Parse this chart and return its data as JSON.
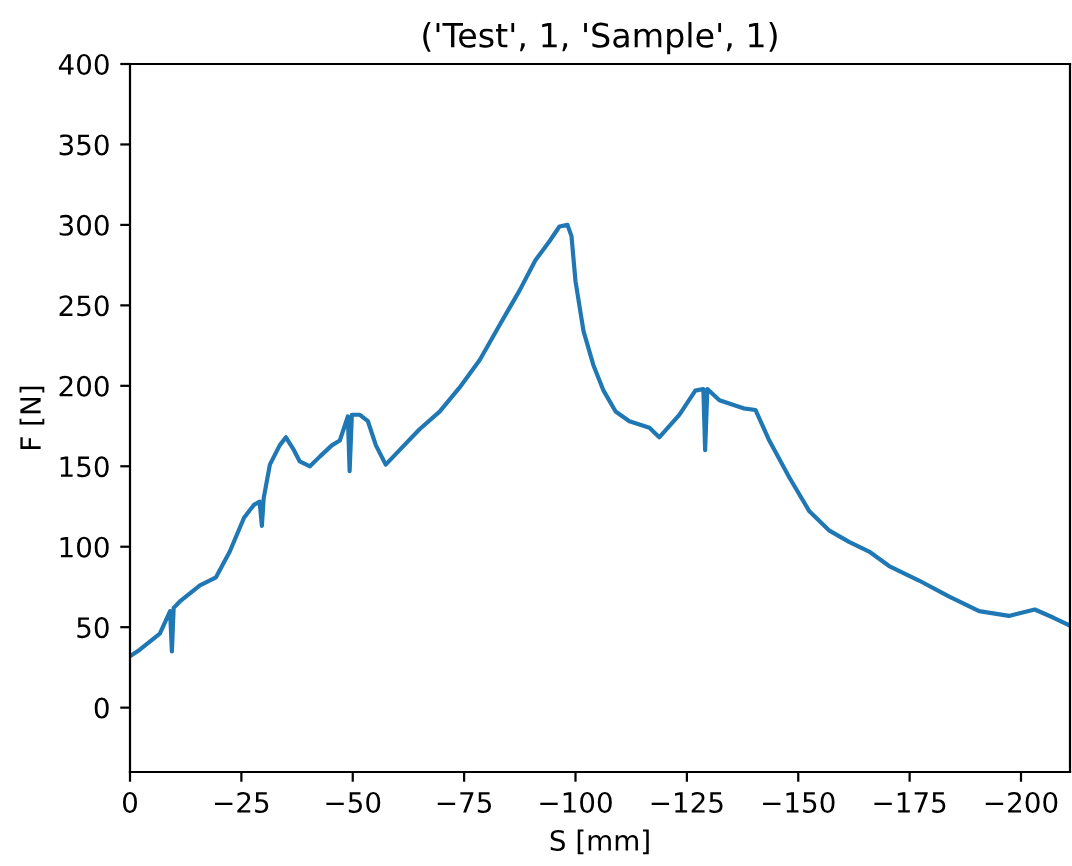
{
  "chart_data": {
    "type": "line",
    "title": "('Test', 1, 'Sample', 1)",
    "xlabel": "S [mm]",
    "ylabel": "F [N]",
    "xlim": [
      0,
      -211
    ],
    "ylim": [
      -40,
      400
    ],
    "xticks": [
      {
        "value": 0,
        "label": "0"
      },
      {
        "value": -25,
        "label": "−25"
      },
      {
        "value": -50,
        "label": "−50"
      },
      {
        "value": -75,
        "label": "−75"
      },
      {
        "value": -100,
        "label": "−100"
      },
      {
        "value": -125,
        "label": "−125"
      },
      {
        "value": -150,
        "label": "−150"
      },
      {
        "value": -175,
        "label": "−175"
      },
      {
        "value": -200,
        "label": "−200"
      }
    ],
    "yticks": [
      0,
      50,
      100,
      150,
      200,
      250,
      300,
      350,
      400
    ],
    "grid": false,
    "marker": "none",
    "line_style": "solid",
    "series": [
      {
        "color": "#1f77b4",
        "x": [
          0,
          -2.2,
          -6.7,
          -9.0,
          -9.4,
          -9.8,
          -11.2,
          -15.7,
          -19.3,
          -22.4,
          -25.6,
          -27.8,
          -29.1,
          -29.6,
          -30.0,
          -31.4,
          -33.6,
          -35.0,
          -36.8,
          -38.1,
          -40.4,
          -42.6,
          -45.3,
          -47.1,
          -48.9,
          -49.3,
          -49.8,
          -51.6,
          -53.4,
          -55.2,
          -57.4,
          -60.5,
          -65.0,
          -69.5,
          -74.0,
          -78.5,
          -83.0,
          -87.4,
          -91.0,
          -94.2,
          -96.4,
          -98.2,
          -99.1,
          -100.0,
          -101.8,
          -104.0,
          -106.3,
          -109.0,
          -112.1,
          -116.6,
          -118.8,
          -123.3,
          -126.9,
          -128.7,
          -129.1,
          -129.6,
          -132.3,
          -137.7,
          -140.4,
          -143.5,
          -148.0,
          -152.5,
          -157.0,
          -161.4,
          -165.9,
          -170.4,
          -177.1,
          -183.9,
          -190.6,
          -197.3,
          -203.1,
          -207.2,
          -211
        ],
        "values": [
          32,
          36,
          46,
          60,
          35,
          62,
          66,
          76,
          81,
          97,
          118,
          126,
          128,
          113,
          130,
          151,
          163,
          168,
          160,
          153,
          150,
          156,
          163,
          166,
          181,
          147,
          182,
          182,
          178,
          163,
          151,
          160,
          173,
          184,
          199,
          216,
          238,
          259,
          278,
          290,
          299,
          300,
          293,
          265,
          234,
          213,
          197,
          184,
          178,
          174,
          168,
          182,
          197,
          198,
          160,
          198,
          191,
          186,
          185,
          166,
          143,
          122,
          110,
          103,
          97,
          88,
          79,
          69,
          60,
          57,
          61,
          56,
          51
        ]
      }
    ]
  }
}
